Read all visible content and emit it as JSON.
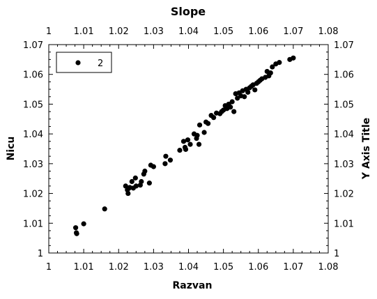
{
  "chart_data": {
    "type": "scatter",
    "title": "Slope",
    "xlabel": "Razvan",
    "ylabel": "Nicu",
    "ylabel_right": "Y Axis Title",
    "xlim": [
      1,
      1.08
    ],
    "ylim": [
      1,
      1.07
    ],
    "x_ticks": [
      "1",
      "1.01",
      "1.02",
      "1.03",
      "1.04",
      "1.05",
      "1.06",
      "1.07",
      "1.08"
    ],
    "y_ticks": [
      "1",
      "1.01",
      "1.02",
      "1.03",
      "1.04",
      "1.05",
      "1.06",
      "1.07"
    ],
    "grid": false,
    "legend": "top-left",
    "series": [
      {
        "name": "2",
        "color": "#000000",
        "x": [
          1.0077,
          1.0079,
          1.008,
          1.01,
          1.016,
          1.022,
          1.0225,
          1.0227,
          1.023,
          1.0232,
          1.0238,
          1.0242,
          1.0248,
          1.025,
          1.0262,
          1.0265,
          1.0272,
          1.0275,
          1.0288,
          1.0292,
          1.03,
          1.0333,
          1.0335,
          1.0348,
          1.0375,
          1.0386,
          1.039,
          1.0392,
          1.0398,
          1.0405,
          1.0416,
          1.0423,
          1.0425,
          1.043,
          1.0432,
          1.0445,
          1.045,
          1.0456,
          1.0465,
          1.0472,
          1.048,
          1.049,
          1.0495,
          1.05,
          1.0505,
          1.051,
          1.0515,
          1.052,
          1.0525,
          1.053,
          1.0535,
          1.054,
          1.0545,
          1.055,
          1.0555,
          1.056,
          1.0565,
          1.057,
          1.0575,
          1.058,
          1.0585,
          1.059,
          1.0595,
          1.06,
          1.0605,
          1.061,
          1.062,
          1.0625,
          1.063,
          1.0635,
          1.064,
          1.065,
          1.066,
          1.069,
          1.07
        ],
        "y": [
          1.0085,
          1.0068,
          1.0065,
          1.0098,
          1.0148,
          1.0225,
          1.0212,
          1.02,
          1.0218,
          1.022,
          1.024,
          1.0218,
          1.0252,
          1.0225,
          1.0228,
          1.024,
          1.0265,
          1.0275,
          1.0235,
          1.0295,
          1.029,
          1.03,
          1.0325,
          1.0312,
          1.0345,
          1.0375,
          1.0355,
          1.0348,
          1.038,
          1.0365,
          1.04,
          1.0385,
          1.0395,
          1.0365,
          1.043,
          1.0405,
          1.044,
          1.0435,
          1.0462,
          1.0455,
          1.047,
          1.0468,
          1.0475,
          1.048,
          1.0495,
          1.0485,
          1.05,
          1.049,
          1.0508,
          1.0475,
          1.0535,
          1.052,
          1.0538,
          1.0528,
          1.0545,
          1.0525,
          1.055,
          1.054,
          1.0555,
          1.056,
          1.0565,
          1.0548,
          1.057,
          1.0575,
          1.058,
          1.0585,
          1.059,
          1.061,
          1.0595,
          1.0605,
          1.0625,
          1.0635,
          1.064,
          1.065,
          1.0655
        ]
      }
    ]
  }
}
